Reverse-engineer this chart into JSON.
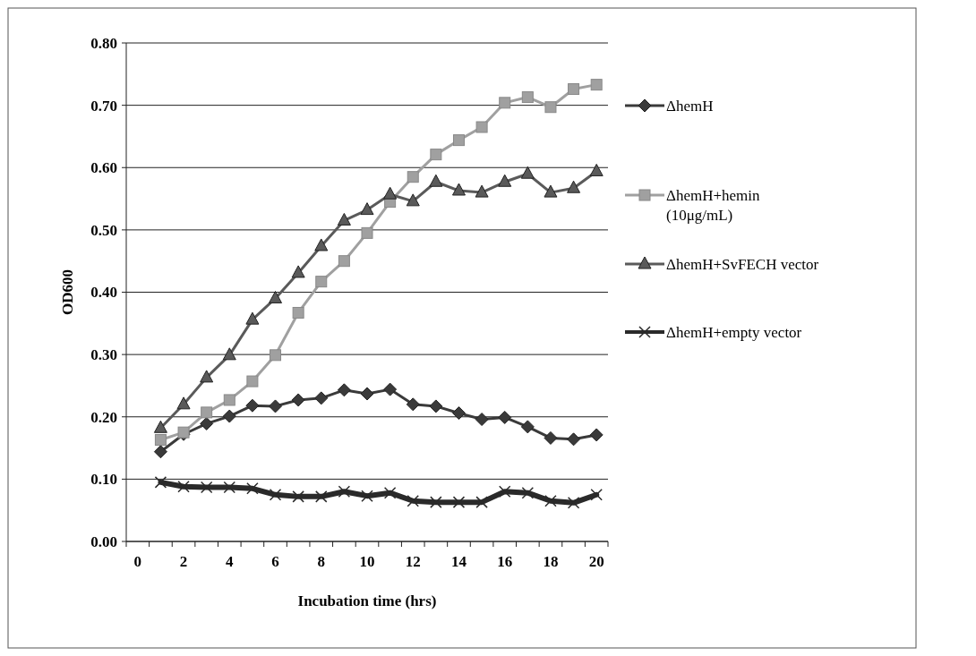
{
  "chart_data": {
    "type": "line",
    "xlabel": "Incubation time (hrs)",
    "ylabel": "OD600",
    "categories": [
      "0",
      null,
      "2",
      null,
      "4",
      null,
      "6",
      null,
      "8",
      null,
      "10",
      null,
      "12",
      null,
      "14",
      null,
      "16",
      null,
      "18",
      null,
      "20"
    ],
    "ylim": [
      0,
      0.8
    ],
    "yticks": [
      {
        "value": 0,
        "label": "0.00"
      },
      {
        "value": 0.1,
        "label": "0.10"
      },
      {
        "value": 0.2,
        "label": "0.20"
      },
      {
        "value": 0.3,
        "label": "0.30"
      },
      {
        "value": 0.4,
        "label": "0.40"
      },
      {
        "value": 0.5,
        "label": "0.50"
      },
      {
        "value": 0.6,
        "label": "0.60"
      },
      {
        "value": 0.7,
        "label": "0.70"
      },
      {
        "value": 0.8,
        "label": "0.80"
      }
    ],
    "grid": "y",
    "legend": "right",
    "series": [
      {
        "name": "ΔhemH",
        "color": "#3a3a3a",
        "marker": "diamond",
        "values": [
          null,
          0.144,
          0.172,
          0.189,
          0.201,
          0.218,
          0.217,
          0.227,
          0.23,
          0.243,
          0.237,
          0.244,
          0.22,
          0.217,
          0.206,
          0.196,
          0.199,
          0.184,
          0.166,
          0.164,
          0.171
        ]
      },
      {
        "name": "ΔhemH+hemin (10μg/mL)",
        "color": "#a0a0a0",
        "marker": "square",
        "values": [
          null,
          0.163,
          0.175,
          0.207,
          0.227,
          0.257,
          0.299,
          0.367,
          0.417,
          0.45,
          0.495,
          0.545,
          0.585,
          0.621,
          0.644,
          0.665,
          0.704,
          0.713,
          0.697,
          0.726,
          0.733
        ]
      },
      {
        "name": "ΔhemH+SvFECH vector",
        "color": "#5a5a5a",
        "marker": "triangle",
        "values": [
          null,
          0.182,
          0.22,
          0.263,
          0.299,
          0.356,
          0.39,
          0.431,
          0.474,
          0.515,
          0.532,
          0.557,
          0.546,
          0.577,
          0.563,
          0.56,
          0.577,
          0.59,
          0.56,
          0.567,
          0.594
        ]
      },
      {
        "name": "ΔhemH+empty vector",
        "color": "#2a2a2a",
        "marker": "cross",
        "values": [
          null,
          0.095,
          0.088,
          0.087,
          0.087,
          0.085,
          0.075,
          0.072,
          0.072,
          0.08,
          0.073,
          0.078,
          0.065,
          0.063,
          0.063,
          0.063,
          0.08,
          0.078,
          0.065,
          0.062,
          0.075
        ]
      }
    ]
  }
}
